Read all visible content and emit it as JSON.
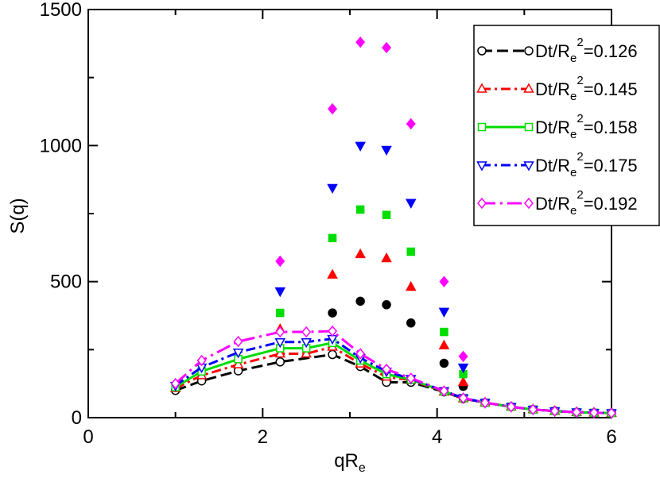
{
  "chart_data": {
    "type": "line",
    "xlabel_main": "qR",
    "xlabel_sub": "e",
    "ylabel": "S(q)",
    "xlim": [
      0,
      6
    ],
    "ylim": [
      0,
      1500
    ],
    "x_ticks": [
      0,
      2,
      4,
      6
    ],
    "y_ticks": [
      0,
      500,
      1000,
      1500
    ],
    "x_tick_labels": [
      "0",
      "2",
      "4",
      "6"
    ],
    "y_tick_labels": [
      "0",
      "500",
      "1000",
      "1500"
    ],
    "legend_position": "top-right",
    "series": [
      {
        "name": "Dt/Re^2=0.126",
        "legend": {
          "pre": "Dt/R",
          "sub": "e",
          "sup": "2",
          "post": "=0.126"
        },
        "color": "#000000",
        "line_style": "dash",
        "marker": "circle",
        "line_x": [
          1.0,
          1.3,
          1.72,
          2.2,
          2.8,
          3.12,
          3.42,
          3.7,
          4.08,
          4.3,
          4.55,
          4.85,
          5.1,
          5.35,
          5.6,
          5.8,
          6.0
        ],
        "line_y": [
          100,
          135,
          172,
          205,
          232,
          188,
          130,
          130,
          95,
          70,
          55,
          40,
          30,
          25,
          20,
          18,
          17
        ],
        "scatter_x": [
          2.8,
          3.12,
          3.42,
          3.7,
          4.08,
          4.3
        ],
        "scatter_y": [
          385,
          428,
          415,
          348,
          200,
          115
        ]
      },
      {
        "name": "Dt/Re^2=0.145",
        "legend": {
          "pre": "Dt/R",
          "sub": "e",
          "sup": "2",
          "post": "=0.145"
        },
        "color": "#ff0000",
        "line_style": "dash-dot",
        "marker": "triangle-up",
        "line_x": [
          1.0,
          1.3,
          1.72,
          2.2,
          2.5,
          2.8,
          3.12,
          3.42,
          3.7,
          4.08,
          4.3,
          4.55,
          4.85,
          5.1,
          5.35,
          5.6,
          5.8,
          6.0
        ],
        "line_y": [
          108,
          155,
          195,
          235,
          235,
          260,
          198,
          150,
          138,
          95,
          70,
          55,
          40,
          30,
          24,
          20,
          18,
          17
        ],
        "scatter_x": [
          2.2,
          2.8,
          3.12,
          3.42,
          3.7,
          4.08,
          4.3
        ],
        "scatter_y": [
          325,
          525,
          600,
          585,
          480,
          265,
          130
        ]
      },
      {
        "name": "Dt/Re^2=0.158",
        "legend": {
          "pre": "Dt/R",
          "sub": "e",
          "sup": "2",
          "post": "=0.158"
        },
        "color": "#00dd00",
        "line_style": "solid",
        "marker": "square",
        "line_x": [
          1.0,
          1.3,
          1.72,
          2.2,
          2.5,
          2.8,
          3.12,
          3.42,
          3.7,
          4.08,
          4.3,
          4.55,
          4.85,
          5.1,
          5.35,
          5.6,
          5.8,
          6.0
        ],
        "line_y": [
          112,
          170,
          215,
          255,
          255,
          275,
          210,
          160,
          140,
          97,
          72,
          55,
          40,
          30,
          24,
          20,
          18,
          17
        ],
        "scatter_x": [
          2.2,
          2.8,
          3.12,
          3.42,
          3.7,
          4.08,
          4.3
        ],
        "scatter_y": [
          385,
          660,
          765,
          745,
          610,
          315,
          160
        ]
      },
      {
        "name": "Dt/Re^2=0.175",
        "legend": {
          "pre": "Dt/R",
          "sub": "e",
          "sup": "2",
          "post": "=0.175"
        },
        "color": "#0000ff",
        "line_style": "dash-dot",
        "marker": "triangle-down",
        "line_x": [
          1.0,
          1.3,
          1.72,
          2.2,
          2.5,
          2.8,
          3.12,
          3.42,
          3.7,
          4.08,
          4.3,
          4.55,
          4.85,
          5.1,
          5.35,
          5.6,
          5.8,
          6.0
        ],
        "line_y": [
          118,
          185,
          240,
          278,
          278,
          290,
          220,
          170,
          143,
          98,
          72,
          55,
          40,
          30,
          24,
          20,
          18,
          17
        ],
        "scatter_x": [
          2.2,
          2.8,
          3.12,
          3.42,
          3.7,
          4.08,
          4.3
        ],
        "scatter_y": [
          465,
          845,
          1000,
          985,
          790,
          390,
          185
        ]
      },
      {
        "name": "Dt/Re^2=0.192",
        "legend": {
          "pre": "Dt/R",
          "sub": "e",
          "sup": "2",
          "post": "=0.192"
        },
        "color": "#ff00ff",
        "line_style": "long-dash-dot",
        "marker": "diamond",
        "line_x": [
          1.0,
          1.3,
          1.72,
          2.2,
          2.5,
          2.8,
          3.12,
          3.42,
          3.7,
          4.08,
          4.3,
          4.55,
          4.85,
          5.1,
          5.35,
          5.6,
          5.8,
          6.0
        ],
        "line_y": [
          125,
          210,
          280,
          315,
          315,
          318,
          235,
          178,
          145,
          98,
          72,
          55,
          40,
          30,
          24,
          20,
          18,
          17
        ],
        "scatter_x": [
          2.2,
          2.8,
          3.12,
          3.42,
          3.7,
          4.08,
          4.3
        ],
        "scatter_y": [
          575,
          1135,
          1380,
          1360,
          1080,
          500,
          225
        ]
      }
    ]
  }
}
